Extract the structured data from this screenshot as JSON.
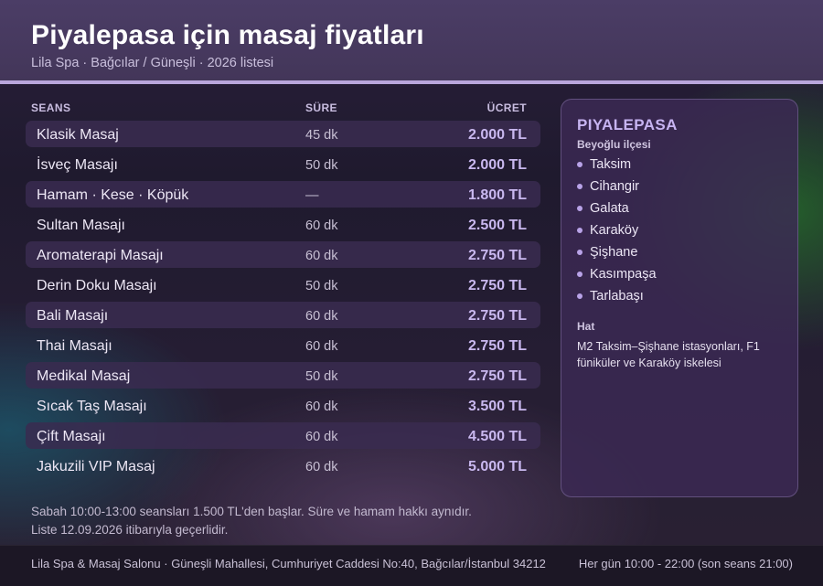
{
  "header": {
    "title": "Piyalepasa için masaj fiyatları",
    "subtitle": "Lila Spa · Bağcılar / Güneşli · 2026 listesi"
  },
  "colors": {
    "accent": "#b9a6dc",
    "price": "#c9b8ef",
    "header_bg": "#4b3d66"
  },
  "table": {
    "headers": {
      "name": "SEANS",
      "duration": "SÜRE",
      "price": "ÜCRET"
    },
    "rows": [
      {
        "name": "Klasik Masaj",
        "duration": "45 dk",
        "price": "2.000 TL"
      },
      {
        "name": "İsveç Masajı",
        "duration": "50 dk",
        "price": "2.000 TL"
      },
      {
        "name": "Hamam · Kese · Köpük",
        "duration": "—",
        "price": "1.800 TL"
      },
      {
        "name": "Sultan Masajı",
        "duration": "60 dk",
        "price": "2.500 TL"
      },
      {
        "name": "Aromaterapi Masajı",
        "duration": "60 dk",
        "price": "2.750 TL"
      },
      {
        "name": "Derin Doku Masajı",
        "duration": "50 dk",
        "price": "2.750 TL"
      },
      {
        "name": "Bali Masajı",
        "duration": "60 dk",
        "price": "2.750 TL"
      },
      {
        "name": "Thai Masajı",
        "duration": "60 dk",
        "price": "2.750 TL"
      },
      {
        "name": "Medikal Masaj",
        "duration": "50 dk",
        "price": "2.750 TL"
      },
      {
        "name": "Sıcak Taş Masajı",
        "duration": "60 dk",
        "price": "3.500 TL"
      },
      {
        "name": "Çift Masajı",
        "duration": "60 dk",
        "price": "4.500 TL"
      },
      {
        "name": "Jakuzili VIP Masaj",
        "duration": "60 dk",
        "price": "5.000 TL"
      }
    ]
  },
  "notes": {
    "line1": "Sabah 10:00-13:00 seansları 1.500 TL'den başlar. Süre ve hamam hakkı aynıdır.",
    "line2": "Liste 12.09.2026 itibarıyla geçerlidir."
  },
  "sidebar": {
    "title": "PIYALEPASA",
    "subtitle": "Beyoğlu ilçesi",
    "items": [
      "Taksim",
      "Cihangir",
      "Galata",
      "Karaköy",
      "Şişhane",
      "Kasımpaşa",
      "Tarlabaşı"
    ],
    "transit_heading": "Hat",
    "transit_text": "M2 Taksim–Şişhane istasyonları, F1 füniküler ve Karaköy iskelesi"
  },
  "footer": {
    "address": "Lila Spa & Masaj Salonu · Güneşli Mahallesi, Cumhuriyet Caddesi No:40, Bağcılar/İstanbul 34212",
    "hours": "Her gün 10:00 - 22:00 (son seans 21:00)"
  }
}
